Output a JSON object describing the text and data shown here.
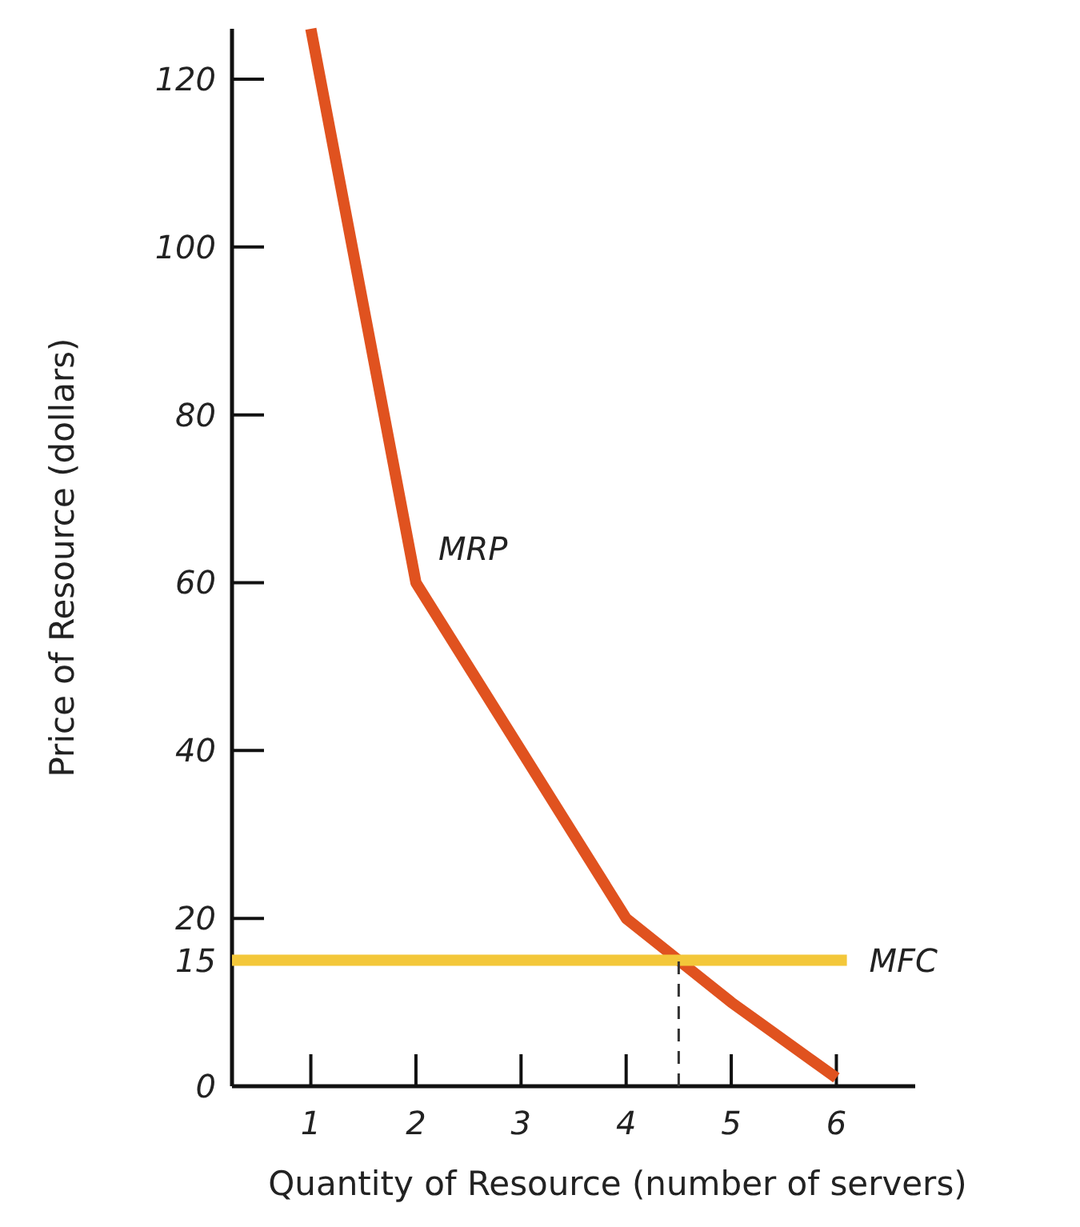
{
  "chart_data": {
    "type": "line",
    "xlabel": "Quantity of Resource (number of servers)",
    "ylabel": "Price of Resource (dollars)",
    "xlim": [
      0.25,
      6.75
    ],
    "ylim": [
      0,
      126
    ],
    "xticks": [
      1,
      2,
      3,
      4,
      5,
      6
    ],
    "yticks": [
      0,
      15,
      20,
      40,
      60,
      80,
      100,
      120
    ],
    "grid": false,
    "marker": "none",
    "series": [
      {
        "name": "MRP",
        "color": "#e0521f",
        "x": [
          1,
          2,
          3,
          4,
          4.5,
          5,
          6
        ],
        "values": [
          126,
          60,
          40,
          20,
          15,
          10,
          1
        ]
      },
      {
        "name": "MFC",
        "color": "#f3c73a",
        "x": [
          0.25,
          6.1
        ],
        "values": [
          15,
          15
        ]
      },
      {
        "color": "#333333",
        "x": [
          4.5,
          4.5
        ],
        "values": [
          0,
          15
        ],
        "line_style": "dashed"
      }
    ]
  }
}
